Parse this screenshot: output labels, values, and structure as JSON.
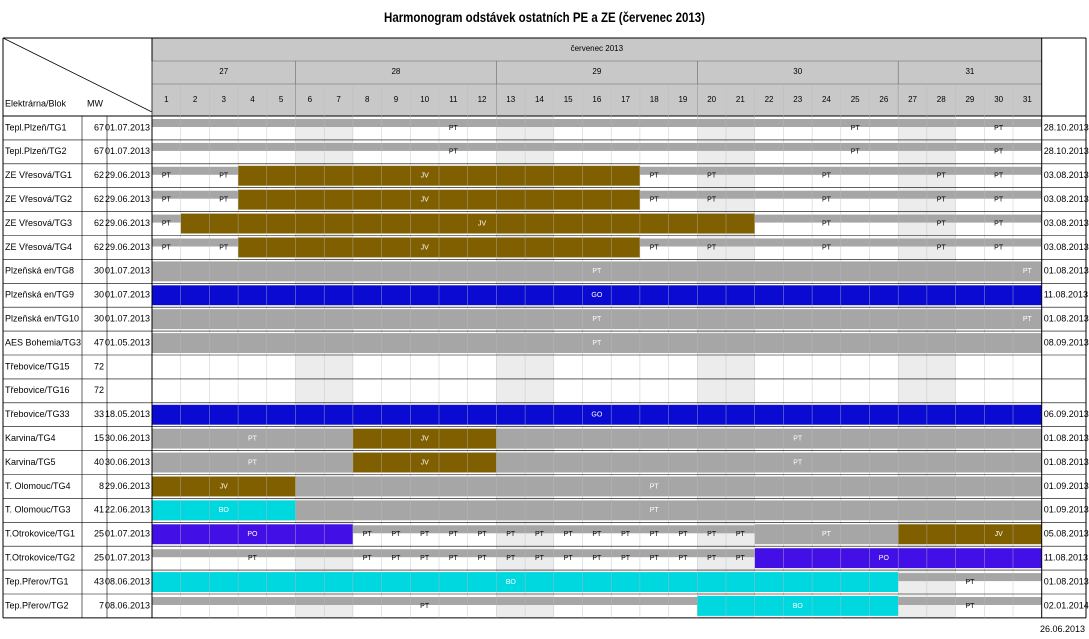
{
  "title": "Harmonogram odstávek ostatních PE a ZE (červenec 2013)",
  "footer_date": "26.06.2013",
  "columns": {
    "block": "Elektrárna/Blok",
    "mw": "MW"
  },
  "month_label": "červenec 2013",
  "weeks": [
    {
      "label": "27",
      "from": 1,
      "to": 5
    },
    {
      "label": "28",
      "from": 6,
      "to": 12
    },
    {
      "label": "29",
      "from": 13,
      "to": 19
    },
    {
      "label": "30",
      "from": 20,
      "to": 26
    },
    {
      "label": "31",
      "from": 27,
      "to": 31
    }
  ],
  "days": [
    "1",
    "2",
    "3",
    "4",
    "5",
    "6",
    "7",
    "8",
    "9",
    "10",
    "11",
    "12",
    "13",
    "14",
    "15",
    "16",
    "17",
    "18",
    "19",
    "20",
    "21",
    "22",
    "23",
    "24",
    "25",
    "26",
    "27",
    "28",
    "29",
    "30",
    "31"
  ],
  "weekend_days": [
    6,
    7,
    13,
    14,
    20,
    21,
    27,
    28
  ],
  "colors": {
    "PT": "#a6a6a6",
    "JV": "#7f5f00",
    "GO": "#0a0ad2",
    "BO": "#00d8e0",
    "PO": "#4210e6",
    "header": "#c8c8c8",
    "weekend": "#ececec"
  },
  "chart_data": {
    "type": "gantt",
    "title": "Harmonogram odstávek ostatních PE a ZE (červenec 2013)",
    "x_unit": "day of July 2013",
    "x_range": [
      1,
      31
    ],
    "rows": [
      {
        "name": "Tepl.Plzeň/TG1",
        "mw": "67",
        "start": "01.07.2013",
        "end": "28.10.2013",
        "bars": [
          {
            "type": "PT",
            "from": 1,
            "to": 31,
            "style": "base"
          }
        ],
        "labels": [
          {
            "text": "PT",
            "day": 11
          },
          {
            "text": "PT",
            "day": 25
          },
          {
            "text": "PT",
            "day": 30
          }
        ]
      },
      {
        "name": "Tepl.Plzeň/TG2",
        "mw": "67",
        "start": "01.07.2013",
        "end": "28.10.2013",
        "bars": [
          {
            "type": "PT",
            "from": 1,
            "to": 31,
            "style": "base"
          }
        ],
        "labels": [
          {
            "text": "PT",
            "day": 11
          },
          {
            "text": "PT",
            "day": 25
          },
          {
            "text": "PT",
            "day": 30
          }
        ]
      },
      {
        "name": "ZE Vřesová/TG1",
        "mw": "62",
        "start": "29.06.2013",
        "end": "03.08.2013",
        "bars": [
          {
            "type": "PT",
            "from": 1,
            "to": 31,
            "style": "base"
          },
          {
            "type": "JV",
            "from": 4,
            "to": 17,
            "style": "full"
          }
        ],
        "labels": [
          {
            "text": "PT",
            "day": 1
          },
          {
            "text": "PT",
            "day": 3
          },
          {
            "text": "JV",
            "day": 10
          },
          {
            "text": "PT",
            "day": 18
          },
          {
            "text": "PT",
            "day": 20
          },
          {
            "text": "PT",
            "day": 24
          },
          {
            "text": "PT",
            "day": 28
          },
          {
            "text": "PT",
            "day": 30
          }
        ]
      },
      {
        "name": "ZE Vřesová/TG2",
        "mw": "62",
        "start": "29.06.2013",
        "end": "03.08.2013",
        "bars": [
          {
            "type": "PT",
            "from": 1,
            "to": 31,
            "style": "base"
          },
          {
            "type": "JV",
            "from": 4,
            "to": 17,
            "style": "full"
          }
        ],
        "labels": [
          {
            "text": "PT",
            "day": 1
          },
          {
            "text": "PT",
            "day": 3
          },
          {
            "text": "JV",
            "day": 10
          },
          {
            "text": "PT",
            "day": 18
          },
          {
            "text": "PT",
            "day": 20
          },
          {
            "text": "PT",
            "day": 24
          },
          {
            "text": "PT",
            "day": 28
          },
          {
            "text": "PT",
            "day": 30
          }
        ]
      },
      {
        "name": "ZE Vřesová/TG3",
        "mw": "62",
        "start": "29.06.2013",
        "end": "03.08.2013",
        "bars": [
          {
            "type": "PT",
            "from": 1,
            "to": 31,
            "style": "base"
          },
          {
            "type": "JV",
            "from": 2,
            "to": 21,
            "style": "full"
          }
        ],
        "labels": [
          {
            "text": "PT",
            "day": 1
          },
          {
            "text": "JV",
            "day": 12
          },
          {
            "text": "PT",
            "day": 24
          },
          {
            "text": "PT",
            "day": 28
          },
          {
            "text": "PT",
            "day": 30
          }
        ]
      },
      {
        "name": "ZE Vřesová/TG4",
        "mw": "62",
        "start": "29.06.2013",
        "end": "03.08.2013",
        "bars": [
          {
            "type": "PT",
            "from": 1,
            "to": 31,
            "style": "base"
          },
          {
            "type": "JV",
            "from": 4,
            "to": 17,
            "style": "full"
          }
        ],
        "labels": [
          {
            "text": "PT",
            "day": 1
          },
          {
            "text": "PT",
            "day": 3
          },
          {
            "text": "JV",
            "day": 10
          },
          {
            "text": "PT",
            "day": 18
          },
          {
            "text": "PT",
            "day": 20
          },
          {
            "text": "PT",
            "day": 24
          },
          {
            "text": "PT",
            "day": 28
          },
          {
            "text": "PT",
            "day": 30
          }
        ]
      },
      {
        "name": "Plzeňská en/TG8",
        "mw": "30",
        "start": "01.07.2013",
        "end": "01.08.2013",
        "bars": [
          {
            "type": "PT",
            "from": 1,
            "to": 31,
            "style": "full"
          }
        ],
        "labels": [
          {
            "text": "PT",
            "day": 16
          },
          {
            "text": "PT",
            "day": 31
          }
        ]
      },
      {
        "name": "Plzeňská en/TG9",
        "mw": "30",
        "start": "01.07.2013",
        "end": "11.08.2013",
        "bars": [
          {
            "type": "GO",
            "from": 1,
            "to": 31,
            "style": "full"
          }
        ],
        "labels": [
          {
            "text": "GO",
            "day": 16
          }
        ]
      },
      {
        "name": "Plzeňská en/TG10",
        "mw": "30",
        "start": "01.07.2013",
        "end": "01.08.2013",
        "bars": [
          {
            "type": "PT",
            "from": 1,
            "to": 31,
            "style": "full"
          }
        ],
        "labels": [
          {
            "text": "PT",
            "day": 16
          },
          {
            "text": "PT",
            "day": 31
          }
        ]
      },
      {
        "name": "AES Bohemia/TG3",
        "mw": "47",
        "start": "01.05.2013",
        "end": "08.09.2013",
        "bars": [
          {
            "type": "PT",
            "from": 1,
            "to": 31,
            "style": "full"
          }
        ],
        "labels": [
          {
            "text": "PT",
            "day": 16
          }
        ]
      },
      {
        "name": "Třebovice/TG15",
        "mw": "72",
        "start": "",
        "end": "",
        "bars": [],
        "labels": []
      },
      {
        "name": "Třebovice/TG16",
        "mw": "72",
        "start": "",
        "end": "",
        "bars": [],
        "labels": []
      },
      {
        "name": "Třebovice/TG33",
        "mw": "33",
        "start": "18.05.2013",
        "end": "06.09.2013",
        "bars": [
          {
            "type": "GO",
            "from": 1,
            "to": 31,
            "style": "full"
          }
        ],
        "labels": [
          {
            "text": "GO",
            "day": 16
          }
        ]
      },
      {
        "name": "Karvina/TG4",
        "mw": "15",
        "start": "30.06.2013",
        "end": "01.08.2013",
        "bars": [
          {
            "type": "PT",
            "from": 1,
            "to": 31,
            "style": "full"
          },
          {
            "type": "JV",
            "from": 8,
            "to": 12,
            "style": "full"
          }
        ],
        "labels": [
          {
            "text": "PT",
            "day": 4
          },
          {
            "text": "JV",
            "day": 10
          },
          {
            "text": "PT",
            "day": 23
          }
        ]
      },
      {
        "name": "Karvina/TG5",
        "mw": "40",
        "start": "30.06.2013",
        "end": "01.08.2013",
        "bars": [
          {
            "type": "PT",
            "from": 1,
            "to": 31,
            "style": "full"
          },
          {
            "type": "JV",
            "from": 8,
            "to": 12,
            "style": "full"
          }
        ],
        "labels": [
          {
            "text": "PT",
            "day": 4
          },
          {
            "text": "JV",
            "day": 10
          },
          {
            "text": "PT",
            "day": 23
          }
        ]
      },
      {
        "name": "T. Olomouc/TG4",
        "mw": "8",
        "start": "29.06.2013",
        "end": "01.09.2013",
        "bars": [
          {
            "type": "PT",
            "from": 1,
            "to": 31,
            "style": "full"
          },
          {
            "type": "JV",
            "from": 1,
            "to": 5,
            "style": "full"
          }
        ],
        "labels": [
          {
            "text": "JV",
            "day": 3
          },
          {
            "text": "PT",
            "day": 18
          }
        ]
      },
      {
        "name": "T. Olomouc/TG3",
        "mw": "41",
        "start": "22.06.2013",
        "end": "01.09.2013",
        "bars": [
          {
            "type": "PT",
            "from": 1,
            "to": 31,
            "style": "full"
          },
          {
            "type": "BO",
            "from": 1,
            "to": 5,
            "style": "full"
          }
        ],
        "labels": [
          {
            "text": "BO",
            "day": 3
          },
          {
            "text": "PT",
            "day": 18
          }
        ]
      },
      {
        "name": "T.Otrokovice/TG1",
        "mw": "25",
        "start": "01.07.2013",
        "end": "05.08.2013",
        "bars": [
          {
            "type": "PT",
            "from": 1,
            "to": 31,
            "style": "base"
          },
          {
            "type": "PO",
            "from": 1,
            "to": 7,
            "style": "full"
          },
          {
            "type": "PT",
            "from": 22,
            "to": 26,
            "style": "full"
          },
          {
            "type": "JV",
            "from": 27,
            "to": 31,
            "style": "full"
          }
        ],
        "labels": [
          {
            "text": "PO",
            "day": 4
          },
          {
            "text": "PT",
            "day": 8
          },
          {
            "text": "PT",
            "day": 9
          },
          {
            "text": "PT",
            "day": 10
          },
          {
            "text": "PT",
            "day": 11
          },
          {
            "text": "PT",
            "day": 12
          },
          {
            "text": "PT",
            "day": 13
          },
          {
            "text": "PT",
            "day": 14
          },
          {
            "text": "PT",
            "day": 15
          },
          {
            "text": "PT",
            "day": 16
          },
          {
            "text": "PT",
            "day": 17
          },
          {
            "text": "PT",
            "day": 18
          },
          {
            "text": "PT",
            "day": 19
          },
          {
            "text": "PT",
            "day": 20
          },
          {
            "text": "PT",
            "day": 21
          },
          {
            "text": "PT",
            "day": 24
          },
          {
            "text": "JV",
            "day": 30
          }
        ]
      },
      {
        "name": "T.Otrokovice/TG2",
        "mw": "25",
        "start": "01.07.2013",
        "end": "11.08.2013",
        "bars": [
          {
            "type": "PT",
            "from": 1,
            "to": 31,
            "style": "base"
          },
          {
            "type": "PO",
            "from": 22,
            "to": 31,
            "style": "full"
          }
        ],
        "labels": [
          {
            "text": "PT",
            "day": 4
          },
          {
            "text": "PT",
            "day": 8
          },
          {
            "text": "PT",
            "day": 9
          },
          {
            "text": "PT",
            "day": 10
          },
          {
            "text": "PT",
            "day": 11
          },
          {
            "text": "PT",
            "day": 12
          },
          {
            "text": "PT",
            "day": 13
          },
          {
            "text": "PT",
            "day": 14
          },
          {
            "text": "PT",
            "day": 15
          },
          {
            "text": "PT",
            "day": 16
          },
          {
            "text": "PT",
            "day": 17
          },
          {
            "text": "PT",
            "day": 18
          },
          {
            "text": "PT",
            "day": 19
          },
          {
            "text": "PT",
            "day": 20
          },
          {
            "text": "PT",
            "day": 21
          },
          {
            "text": "PO",
            "day": 26
          }
        ]
      },
      {
        "name": "Tep.Přerov/TG1",
        "mw": "43",
        "start": "08.06.2013",
        "end": "01.08.2013",
        "bars": [
          {
            "type": "BO",
            "from": 1,
            "to": 26,
            "style": "full"
          },
          {
            "type": "PT",
            "from": 27,
            "to": 31,
            "style": "base"
          }
        ],
        "labels": [
          {
            "text": "BO",
            "day": 13
          },
          {
            "text": "PT",
            "day": 29
          }
        ]
      },
      {
        "name": "Tep.Přerov/TG2",
        "mw": "7",
        "start": "08.06.2013",
        "end": "02.01.2014",
        "bars": [
          {
            "type": "PT",
            "from": 1,
            "to": 31,
            "style": "base"
          },
          {
            "type": "BO",
            "from": 20,
            "to": 26,
            "style": "full"
          }
        ],
        "labels": [
          {
            "text": "PT",
            "day": 10
          },
          {
            "text": "BO",
            "day": 23
          },
          {
            "text": "PT",
            "day": 29
          }
        ]
      }
    ]
  }
}
